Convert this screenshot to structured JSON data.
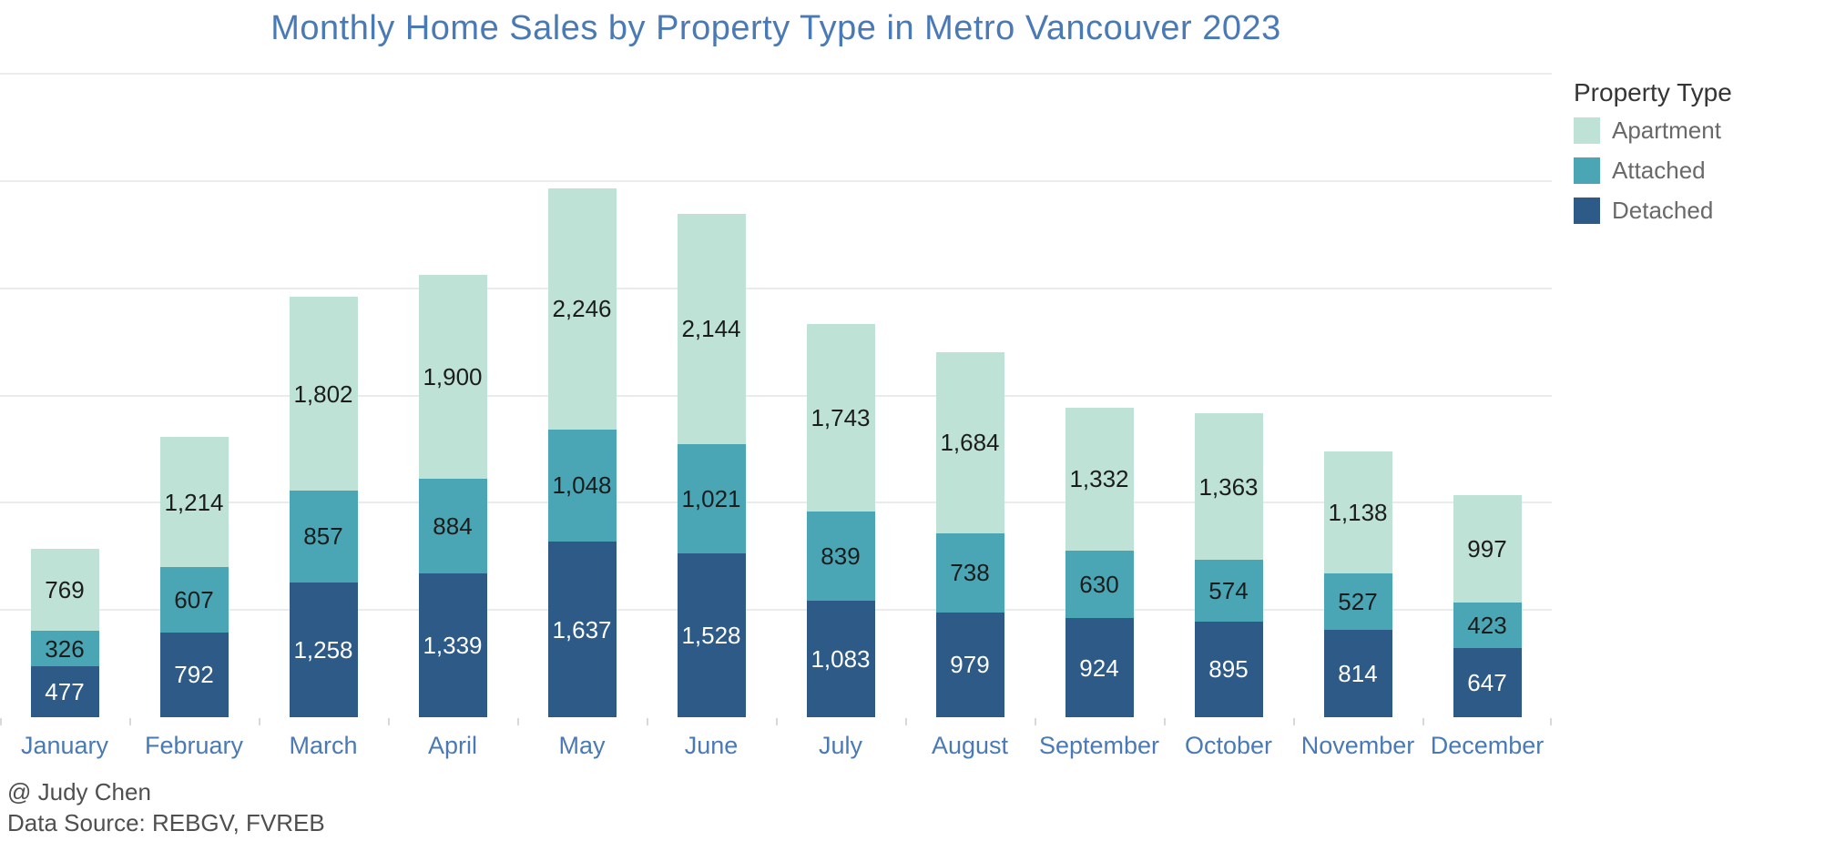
{
  "title": "Monthly Home Sales by Property Type in Metro Vancouver 2023",
  "legend": {
    "title": "Property Type",
    "entries": [
      {
        "label": "Apartment",
        "color": "#bee3d6"
      },
      {
        "label": "Attached",
        "color": "#4aa6b5"
      },
      {
        "label": "Detached",
        "color": "#2d5a87"
      }
    ]
  },
  "footer": {
    "author": "@ Judy Chen",
    "source": "Data Source: REBGV, FVREB"
  },
  "colors": {
    "title_text": "#4a7ab5",
    "month_label_text": "#4a7ab5",
    "gridline": "#ebebeb",
    "axis_tick": "#d9d9d9",
    "footer_text": "#4f4f4f",
    "legend_title_text": "#353535",
    "legend_label_text": "#696969"
  },
  "chart_data": {
    "type": "bar",
    "stacked": true,
    "title": "Monthly Home Sales by Property Type in Metro Vancouver 2023",
    "xlabel": "",
    "ylabel": "",
    "categories": [
      "January",
      "February",
      "March",
      "April",
      "May",
      "June",
      "July",
      "August",
      "September",
      "October",
      "November",
      "December"
    ],
    "series": [
      {
        "name": "Detached",
        "color": "#2d5a87",
        "label_color": "#ffffff",
        "values": [
          477,
          792,
          1258,
          1339,
          1637,
          1528,
          1083,
          979,
          924,
          895,
          814,
          647
        ]
      },
      {
        "name": "Attached",
        "color": "#4aa6b5",
        "label_color": "#1c1c1c",
        "values": [
          326,
          607,
          857,
          884,
          1048,
          1021,
          839,
          738,
          630,
          574,
          527,
          423
        ]
      },
      {
        "name": "Apartment",
        "color": "#bee3d6",
        "label_color": "#1c1c1c",
        "values": [
          769,
          1214,
          1802,
          1900,
          2246,
          2144,
          1743,
          1684,
          1332,
          1363,
          1138,
          997
        ]
      }
    ],
    "ylim": [
      0,
      6000
    ],
    "gridline_step": 1000,
    "grid": true,
    "legend_position": "right",
    "value_labels": true,
    "value_format": "thousands-comma"
  }
}
